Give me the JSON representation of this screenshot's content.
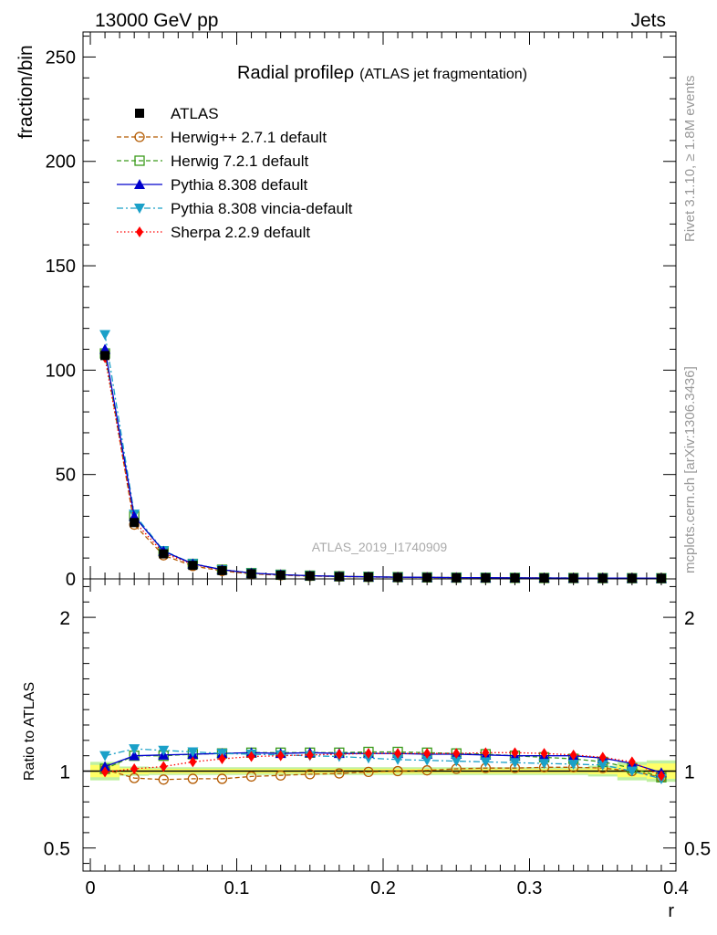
{
  "header": {
    "left": "13000 GeV pp",
    "right": "Jets"
  },
  "side_labels": {
    "rivet": "Rivet 3.1.10, ≥ 1.8M events",
    "mcplots": "mcplots.cern.ch [arXiv:1306.3436]"
  },
  "title": {
    "main": "Radial profileρ",
    "sub": "(ATLAS jet fragmentation)"
  },
  "watermark": "ATLAS_2019_I1740909",
  "chart_data": [
    {
      "type": "line",
      "ylabel": "fraction/bin",
      "xlabel": "",
      "xlim": [
        -0.005,
        0.4
      ],
      "ylim": [
        0,
        262
      ],
      "y_ticks": [
        0,
        50,
        100,
        150,
        200,
        250
      ],
      "x": [
        0.01,
        0.03,
        0.05,
        0.07,
        0.09,
        0.11,
        0.13,
        0.15,
        0.17,
        0.19,
        0.21,
        0.23,
        0.25,
        0.27,
        0.29,
        0.31,
        0.33,
        0.35,
        0.37,
        0.39
      ],
      "legend_position": "top-left",
      "series": [
        {
          "name": "ATLAS",
          "color": "#000000",
          "marker": "square-filled",
          "values": [
            107,
            27,
            12,
            6.5,
            4,
            2.5,
            1.8,
            1.4,
            1.1,
            0.9,
            0.75,
            0.65,
            0.55,
            0.5,
            0.45,
            0.4,
            0.37,
            0.34,
            0.32,
            0.3
          ]
        },
        {
          "name": "Herwig++ 2.7.1 default",
          "color": "#b35a00",
          "line": "dashed",
          "marker": "circle-open",
          "values": [
            108,
            26,
            11.3,
            6.2,
            3.8,
            2.4,
            1.75,
            1.37,
            1.08,
            0.89,
            0.75,
            0.65,
            0.56,
            0.51,
            0.46,
            0.41,
            0.38,
            0.35,
            0.32,
            0.29
          ]
        },
        {
          "name": "Herwig 7.2.1 default",
          "color": "#3a9a1a",
          "line": "dashed",
          "marker": "square-open",
          "values": [
            108,
            30,
            13.2,
            7.2,
            4.4,
            2.8,
            2.0,
            1.55,
            1.23,
            1.0,
            0.84,
            0.73,
            0.62,
            0.56,
            0.5,
            0.44,
            0.41,
            0.37,
            0.33,
            0.29
          ]
        },
        {
          "name": "Pythia 8.308 default",
          "color": "#0000cc",
          "line": "solid",
          "marker": "triangle-up-filled",
          "values": [
            110,
            30,
            13.3,
            7.2,
            4.4,
            2.8,
            2.0,
            1.55,
            1.23,
            1.0,
            0.84,
            0.73,
            0.62,
            0.56,
            0.5,
            0.44,
            0.41,
            0.37,
            0.33,
            0.29
          ]
        },
        {
          "name": "Pythia 8.308 vincia-default",
          "color": "#1aa0c8",
          "line": "dash-dot",
          "marker": "triangle-down-filled",
          "values": [
            117,
            31,
            13.5,
            7.3,
            4.4,
            2.8,
            2.0,
            1.55,
            1.22,
            0.98,
            0.82,
            0.71,
            0.61,
            0.55,
            0.49,
            0.43,
            0.39,
            0.36,
            0.32,
            0.29
          ]
        },
        {
          "name": "Sherpa 2.2.9 default",
          "color": "#ff0000",
          "line": "dotted",
          "marker": "diamond-filled",
          "values": [
            106,
            27.5,
            12.4,
            6.9,
            4.3,
            2.75,
            1.98,
            1.55,
            1.24,
            1.01,
            0.85,
            0.74,
            0.63,
            0.57,
            0.51,
            0.45,
            0.41,
            0.37,
            0.33,
            0.29
          ]
        }
      ]
    },
    {
      "type": "line",
      "ylabel": "Ratio to ATLAS",
      "xlabel": "r",
      "xlim": [
        -0.005,
        0.4
      ],
      "ylim": [
        0.35,
        2.25
      ],
      "y_ticks": [
        0.5,
        1,
        2
      ],
      "y_tick_labels": [
        "0.5",
        "1",
        "2"
      ],
      "x_ticks": [
        0,
        0.1,
        0.2,
        0.3,
        0.4
      ],
      "x_tick_labels": [
        "0",
        "0.1",
        "0.2",
        "0.3",
        "0.4"
      ],
      "x": [
        0.01,
        0.03,
        0.05,
        0.07,
        0.09,
        0.11,
        0.13,
        0.15,
        0.17,
        0.19,
        0.21,
        0.23,
        0.25,
        0.27,
        0.29,
        0.31,
        0.33,
        0.35,
        0.37,
        0.39
      ],
      "band": {
        "inner_color": "#ffff66",
        "outer_color": "#bff0a0",
        "inner_halfwidth": [
          0.04,
          0.02,
          0.015,
          0.015,
          0.015,
          0.015,
          0.015,
          0.015,
          0.015,
          0.015,
          0.015,
          0.015,
          0.015,
          0.015,
          0.015,
          0.015,
          0.015,
          0.02,
          0.04,
          0.05
        ],
        "outer_halfwidth": [
          0.06,
          0.03,
          0.025,
          0.025,
          0.025,
          0.025,
          0.025,
          0.025,
          0.025,
          0.025,
          0.025,
          0.025,
          0.025,
          0.025,
          0.025,
          0.025,
          0.025,
          0.035,
          0.06,
          0.07
        ]
      },
      "series": [
        {
          "name": "Herwig++ 2.7.1 default",
          "values": [
            1.01,
            0.955,
            0.945,
            0.95,
            0.95,
            0.965,
            0.972,
            0.98,
            0.985,
            0.995,
            1.0,
            1.005,
            1.015,
            1.02,
            1.02,
            1.025,
            1.025,
            1.02,
            1.0,
            0.96
          ]
        },
        {
          "name": "Herwig 7.2.1 default",
          "values": [
            1.015,
            1.1,
            1.1,
            1.11,
            1.115,
            1.12,
            1.12,
            1.12,
            1.12,
            1.125,
            1.125,
            1.12,
            1.115,
            1.11,
            1.1,
            1.09,
            1.08,
            1.06,
            1.02,
            0.96
          ]
        },
        {
          "name": "Pythia 8.308 default",
          "values": [
            1.03,
            1.1,
            1.105,
            1.11,
            1.115,
            1.12,
            1.115,
            1.12,
            1.115,
            1.115,
            1.115,
            1.11,
            1.11,
            1.105,
            1.1,
            1.1,
            1.1,
            1.085,
            1.05,
            0.99
          ]
        },
        {
          "name": "Pythia 8.308 vincia-default",
          "values": [
            1.1,
            1.145,
            1.135,
            1.125,
            1.115,
            1.11,
            1.105,
            1.1,
            1.095,
            1.085,
            1.075,
            1.07,
            1.065,
            1.06,
            1.055,
            1.05,
            1.045,
            1.04,
            1.0,
            0.95
          ]
        },
        {
          "name": "Sherpa 2.2.9 default",
          "values": [
            0.995,
            1.015,
            1.03,
            1.06,
            1.08,
            1.095,
            1.1,
            1.105,
            1.11,
            1.115,
            1.115,
            1.115,
            1.115,
            1.12,
            1.12,
            1.115,
            1.105,
            1.09,
            1.06,
            0.97
          ]
        }
      ]
    }
  ]
}
